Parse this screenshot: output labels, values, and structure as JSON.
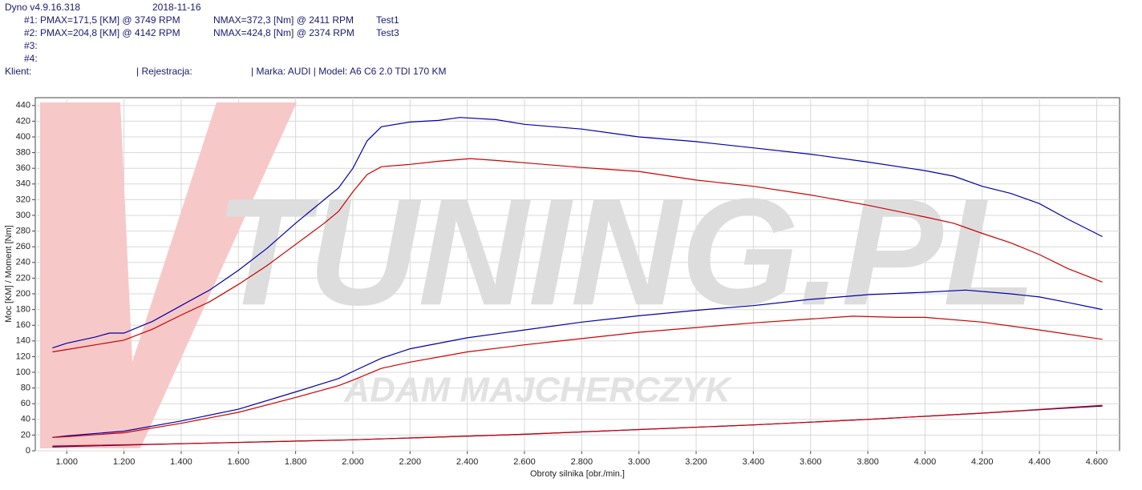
{
  "header": {
    "program": "Dyno v4.9.16.318",
    "date": "2018-11-16",
    "runs": [
      {
        "label": "#1: PMAX=171,5 [KM] @ 3749 RPM",
        "torque": "NMAX=372,3 [Nm] @ 2411 RPM",
        "name": "Test1"
      },
      {
        "label": "#2: PMAX=204,8 [KM] @ 4142 RPM",
        "torque": "NMAX=424,8 [Nm] @ 2374 RPM",
        "name": "Test3"
      },
      {
        "label": "#3:"
      },
      {
        "label": "#4:"
      }
    ],
    "client": "Klient:",
    "registration": "| Rejestracja:",
    "vehicle": "| Marka: AUDI | Model: A6 C6 2.0 TDI 170 KM"
  },
  "chart_data": {
    "type": "line",
    "ylabel": "Moc [KM] / Moment [Nm]",
    "xlabel": "Obroty silnika [obr./min.]",
    "watermark": [
      "TUNING.PL",
      "ADAM MAJCHERCZYK"
    ],
    "xlim": [
      890,
      4680
    ],
    "ylim": [
      0,
      450
    ],
    "grid": true,
    "xticks": [
      {
        "value": 1000,
        "label": "1.000"
      },
      {
        "value": 1200,
        "label": "1.200"
      },
      {
        "value": 1400,
        "label": "1.400"
      },
      {
        "value": 1600,
        "label": "1.600"
      },
      {
        "value": 1800,
        "label": "1.800"
      },
      {
        "value": 2000,
        "label": "2.000"
      },
      {
        "value": 2200,
        "label": "2.200"
      },
      {
        "value": 2400,
        "label": "2.400"
      },
      {
        "value": 2600,
        "label": "2.600"
      },
      {
        "value": 2800,
        "label": "2.800"
      },
      {
        "value": 3000,
        "label": "3.000"
      },
      {
        "value": 3200,
        "label": "3.200"
      },
      {
        "value": 3400,
        "label": "3.400"
      },
      {
        "value": 3600,
        "label": "3.600"
      },
      {
        "value": 3800,
        "label": "3.800"
      },
      {
        "value": 4000,
        "label": "4.000"
      },
      {
        "value": 4200,
        "label": "4.200"
      },
      {
        "value": 4400,
        "label": "4.400"
      },
      {
        "value": 4600,
        "label": "4.600"
      }
    ],
    "yticks": [
      0,
      20,
      40,
      60,
      80,
      100,
      120,
      140,
      160,
      180,
      200,
      220,
      240,
      260,
      280,
      300,
      320,
      340,
      360,
      380,
      400,
      420,
      440
    ],
    "series": [
      {
        "color": "#0000aa",
        "x": [
          950,
          1000,
          1100,
          1150,
          1200,
          1300,
          1400,
          1500,
          1600,
          1700,
          1800,
          1900,
          1950,
          2000,
          2050,
          2100,
          2200,
          2300,
          2374,
          2500,
          2600,
          2800,
          3000,
          3200,
          3400,
          3600,
          3800,
          4000,
          4100,
          4200,
          4300,
          4400,
          4500,
          4620
        ],
        "values": [
          131,
          137,
          145,
          150,
          150,
          165,
          185,
          205,
          230,
          258,
          290,
          320,
          335,
          360,
          395,
          413,
          419,
          421,
          424.8,
          422,
          416,
          410,
          400,
          394,
          386,
          378,
          368,
          357,
          350,
          337,
          328,
          315,
          295,
          273
        ]
      },
      {
        "color": "#cc0000",
        "x": [
          950,
          1000,
          1100,
          1200,
          1300,
          1400,
          1500,
          1600,
          1700,
          1800,
          1900,
          1950,
          2000,
          2050,
          2100,
          2200,
          2300,
          2411,
          2500,
          2600,
          2800,
          3000,
          3200,
          3400,
          3600,
          3800,
          4000,
          4100,
          4200,
          4300,
          4400,
          4500,
          4620
        ],
        "values": [
          126,
          129,
          135,
          141,
          155,
          173,
          190,
          212,
          236,
          263,
          290,
          305,
          330,
          352,
          362,
          365,
          369,
          372.3,
          370,
          367,
          361,
          356,
          345,
          337,
          326,
          313,
          298,
          290,
          277,
          265,
          250,
          232,
          215
        ]
      },
      {
        "color": "#0000aa",
        "x": [
          950,
          1000,
          1200,
          1400,
          1600,
          1800,
          1950,
          2000,
          2100,
          2200,
          2400,
          2600,
          2800,
          3000,
          3200,
          3400,
          3600,
          3800,
          4000,
          4142,
          4300,
          4400,
          4500,
          4620
        ],
        "values": [
          17,
          19,
          25,
          38,
          53,
          75,
          92,
          101,
          118,
          130,
          144,
          154,
          164,
          172,
          179,
          185,
          193,
          199,
          202,
          204.8,
          200,
          196,
          189,
          180
        ]
      },
      {
        "color": "#cc0000",
        "x": [
          950,
          1000,
          1200,
          1400,
          1600,
          1800,
          1950,
          2000,
          2100,
          2200,
          2400,
          2600,
          2800,
          3000,
          3200,
          3400,
          3600,
          3749,
          3900,
          4000,
          4200,
          4400,
          4620
        ],
        "values": [
          17,
          18,
          23,
          35,
          49,
          68,
          83,
          90,
          105,
          113,
          126,
          135,
          143,
          151,
          157,
          163,
          168,
          171.5,
          170,
          170,
          164,
          154,
          142
        ]
      },
      {
        "color": "#0000aa",
        "x": [
          950,
          1400,
          2000,
          2600,
          3000,
          3400,
          3800,
          4200,
          4620
        ],
        "values": [
          5,
          9,
          14,
          21,
          27,
          33,
          40,
          48,
          57
        ]
      },
      {
        "color": "#cc0000",
        "x": [
          950,
          1400,
          2000,
          2600,
          3000,
          3400,
          3800,
          4200,
          4620
        ],
        "values": [
          6,
          9,
          14,
          21,
          27,
          33,
          40,
          48,
          58
        ]
      }
    ]
  }
}
